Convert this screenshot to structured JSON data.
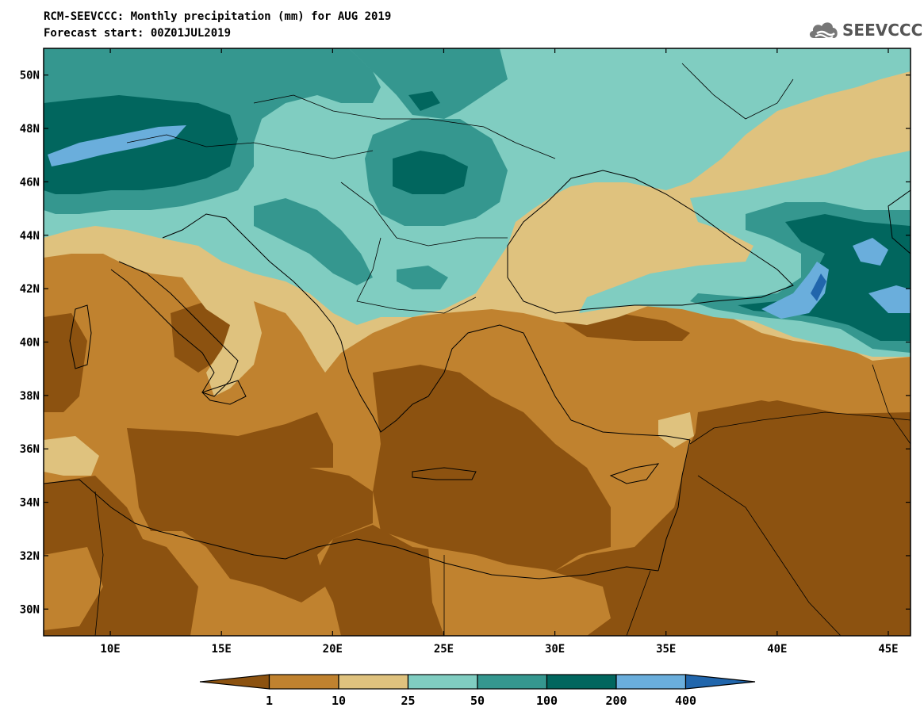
{
  "title_line1": "RCM-SEEVCCC: Monthly precipitation (mm) for AUG 2019",
  "title_line2": "Forecast start: 00Z01JUL2019",
  "logo_text": "SEEVCCC",
  "map": {
    "lon_range": [
      7,
      46
    ],
    "lat_range": [
      29,
      51
    ],
    "lat_ticks": [
      {
        "value": 30,
        "label": "30N"
      },
      {
        "value": 32,
        "label": "32N"
      },
      {
        "value": 34,
        "label": "34N"
      },
      {
        "value": 36,
        "label": "36N"
      },
      {
        "value": 38,
        "label": "38N"
      },
      {
        "value": 40,
        "label": "40N"
      },
      {
        "value": 42,
        "label": "42N"
      },
      {
        "value": 44,
        "label": "44N"
      },
      {
        "value": 46,
        "label": "46N"
      },
      {
        "value": 48,
        "label": "48N"
      },
      {
        "value": 50,
        "label": "50N"
      }
    ],
    "lon_ticks": [
      {
        "value": 10,
        "label": "10E"
      },
      {
        "value": 15,
        "label": "15E"
      },
      {
        "value": 20,
        "label": "20E"
      },
      {
        "value": 25,
        "label": "25E"
      },
      {
        "value": 30,
        "label": "30E"
      },
      {
        "value": 35,
        "label": "35E"
      },
      {
        "value": 40,
        "label": "40E"
      },
      {
        "value": 45,
        "label": "45E"
      }
    ]
  },
  "colorbar": {
    "levels": [
      "1",
      "10",
      "25",
      "50",
      "100",
      "200",
      "400"
    ],
    "colors": [
      "#8c5210",
      "#c0822f",
      "#dfc27e",
      "#80cdc1",
      "#35978f",
      "#01665e",
      "#6aaedc",
      "#2166ac"
    ]
  }
}
